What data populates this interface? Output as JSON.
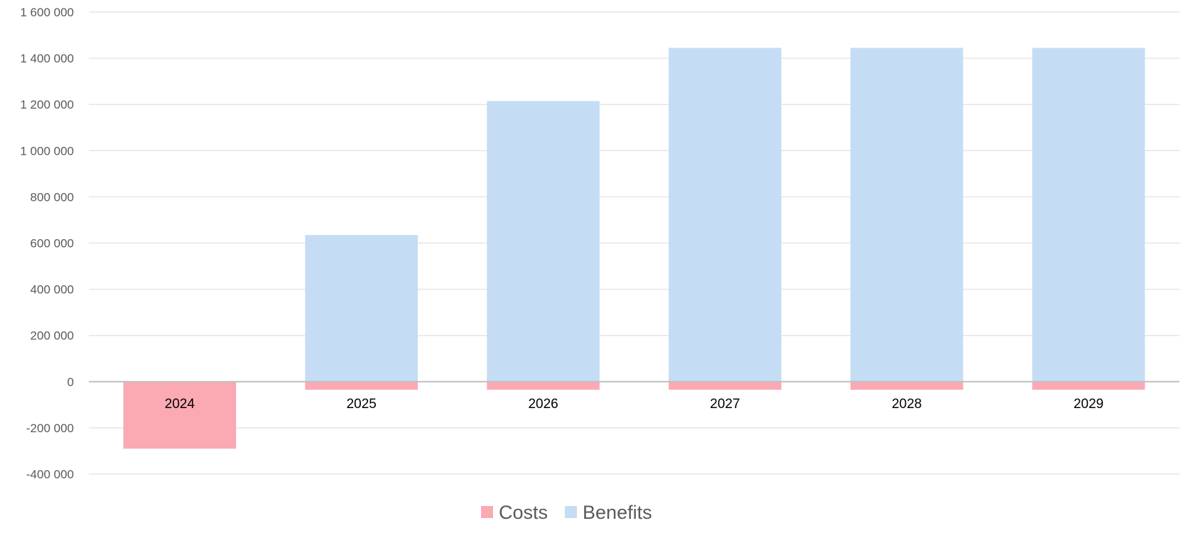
{
  "chart_data": {
    "type": "bar",
    "stacked": true,
    "categories": [
      "2024",
      "2025",
      "2026",
      "2027",
      "2028",
      "2029"
    ],
    "series": [
      {
        "name": "Costs",
        "color": "#fba9b3",
        "values": [
          -290000,
          -35000,
          -35000,
          -35000,
          -35000,
          -35000
        ]
      },
      {
        "name": "Benefits",
        "color": "#c5ddf4",
        "values": [
          0,
          635000,
          1215000,
          1445000,
          1445000,
          1445000
        ]
      }
    ],
    "ylim": [
      -400000,
      1600000
    ],
    "yticks": [
      -400000,
      -200000,
      0,
      200000,
      400000,
      600000,
      800000,
      1000000,
      1200000,
      1400000,
      1600000
    ],
    "ytick_labels": [
      "-400 000",
      "-200 000",
      "0",
      "200 000",
      "400 000",
      "600 000",
      "800 000",
      "1 000 000",
      "1 200 000",
      "1 400 000",
      "1 600 000"
    ],
    "grid": true,
    "legend": {
      "position": "bottom",
      "entries": [
        "Costs",
        "Benefits"
      ]
    }
  }
}
